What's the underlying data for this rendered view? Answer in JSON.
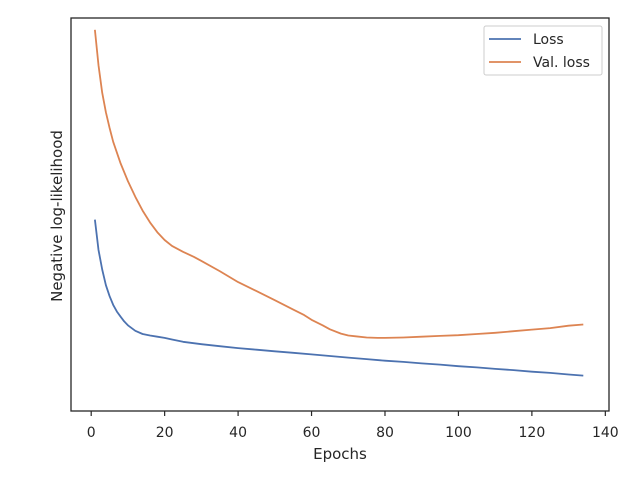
{
  "chart_data": {
    "type": "line",
    "xlabel": "Epochs",
    "ylabel": "Negative log-likelihood",
    "xlim": [
      -5.5,
      141
    ],
    "ylim": [
      0,
      1
    ],
    "x_ticks": [
      0,
      20,
      40,
      60,
      80,
      100,
      120,
      140
    ],
    "x_tick_labels": [
      "0",
      "20",
      "40",
      "60",
      "80",
      "100",
      "120",
      "140"
    ],
    "y_ticks_shown": false,
    "grid": false,
    "legend_position": "top-right",
    "series": [
      {
        "name": "Loss",
        "color": "#4c72b0",
        "x": [
          1,
          2,
          3,
          4,
          5,
          6,
          7,
          8,
          9,
          10,
          12,
          14,
          16,
          18,
          20,
          22,
          25,
          30,
          35,
          40,
          45,
          50,
          55,
          60,
          65,
          70,
          75,
          80,
          85,
          90,
          95,
          100,
          105,
          110,
          115,
          120,
          125,
          130,
          134
        ],
        "y": [
          0.487,
          0.41,
          0.36,
          0.32,
          0.292,
          0.27,
          0.253,
          0.24,
          0.228,
          0.218,
          0.204,
          0.196,
          0.192,
          0.189,
          0.186,
          0.182,
          0.176,
          0.17,
          0.165,
          0.16,
          0.156,
          0.152,
          0.148,
          0.144,
          0.14,
          0.136,
          0.132,
          0.128,
          0.125,
          0.121,
          0.118,
          0.114,
          0.111,
          0.107,
          0.104,
          0.1,
          0.097,
          0.093,
          0.09
        ]
      },
      {
        "name": "Val. loss",
        "color": "#dd8452",
        "x": [
          1,
          2,
          3,
          4,
          5,
          6,
          8,
          10,
          12,
          14,
          16,
          18,
          20,
          22,
          25,
          28,
          30,
          35,
          40,
          45,
          50,
          55,
          58,
          60,
          63,
          65,
          68,
          70,
          72,
          75,
          78,
          80,
          85,
          90,
          95,
          100,
          105,
          110,
          115,
          120,
          125,
          130,
          134
        ],
        "y": [
          0.97,
          0.88,
          0.81,
          0.76,
          0.72,
          0.685,
          0.63,
          0.585,
          0.545,
          0.51,
          0.48,
          0.455,
          0.435,
          0.42,
          0.405,
          0.392,
          0.382,
          0.356,
          0.328,
          0.305,
          0.282,
          0.258,
          0.244,
          0.232,
          0.218,
          0.208,
          0.197,
          0.192,
          0.19,
          0.187,
          0.186,
          0.186,
          0.187,
          0.189,
          0.191,
          0.193,
          0.196,
          0.199,
          0.203,
          0.207,
          0.211,
          0.217,
          0.22
        ]
      }
    ]
  }
}
